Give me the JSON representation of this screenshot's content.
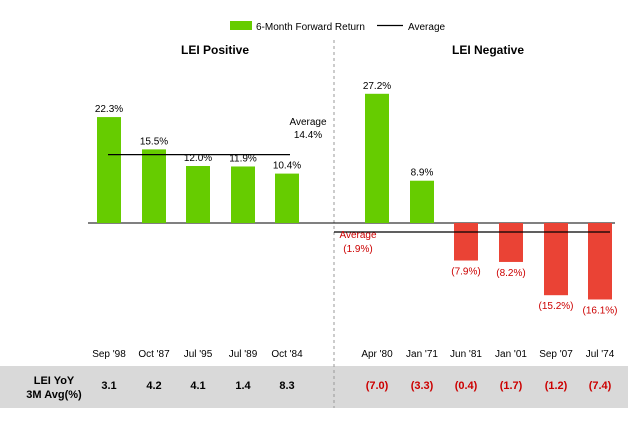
{
  "legend": {
    "bar_label": "6-Month Forward Return",
    "line_label": "Average",
    "bar_color": "#66cc00",
    "line_color": "#000000",
    "position": "top-center"
  },
  "colors": {
    "positive_bar": "#66cc00",
    "negative_bar": "#ea4335",
    "negative_text": "#cc0000",
    "table_bg": "#d9d9d9",
    "divider": "#999999"
  },
  "chart_data": {
    "type": "bar",
    "panels": [
      {
        "title": "LEI Positive",
        "categories": [
          "Sep '98",
          "Oct '87",
          "Jul '95",
          "Jul '89",
          "Oct '84"
        ],
        "values": [
          22.3,
          15.5,
          12.0,
          11.9,
          10.4
        ],
        "value_labels": [
          "22.3%",
          "15.5%",
          "12.0%",
          "11.9%",
          "10.4%"
        ],
        "average": 14.4,
        "average_label": [
          "Average",
          "14.4%"
        ],
        "lei_yoy_3m_avg": [
          "3.1",
          "4.2",
          "4.1",
          "1.4",
          "8.3"
        ]
      },
      {
        "title": "LEI Negative",
        "categories": [
          "Apr '80",
          "Jan '71",
          "Jun '81",
          "Jan '01",
          "Sep '07",
          "Jul '74"
        ],
        "values": [
          27.2,
          8.9,
          -7.9,
          -8.2,
          -15.2,
          -16.1
        ],
        "value_labels": [
          "27.2%",
          "8.9%",
          "(7.9%)",
          "(8.2%)",
          "(15.2%)",
          "(16.1%)"
        ],
        "average": -1.9,
        "average_label": [
          "Average",
          "(1.9%)"
        ],
        "lei_yoy_3m_avg": [
          "(7.0)",
          "(3.3)",
          "(0.4)",
          "(1.7)",
          "(1.2)",
          "(7.4)"
        ]
      }
    ],
    "ylim": [
      -17.5,
      30
    ],
    "grid": false
  },
  "table": {
    "row_label_line1": "LEI YoY",
    "row_label_line2": "3M Avg(%)"
  }
}
